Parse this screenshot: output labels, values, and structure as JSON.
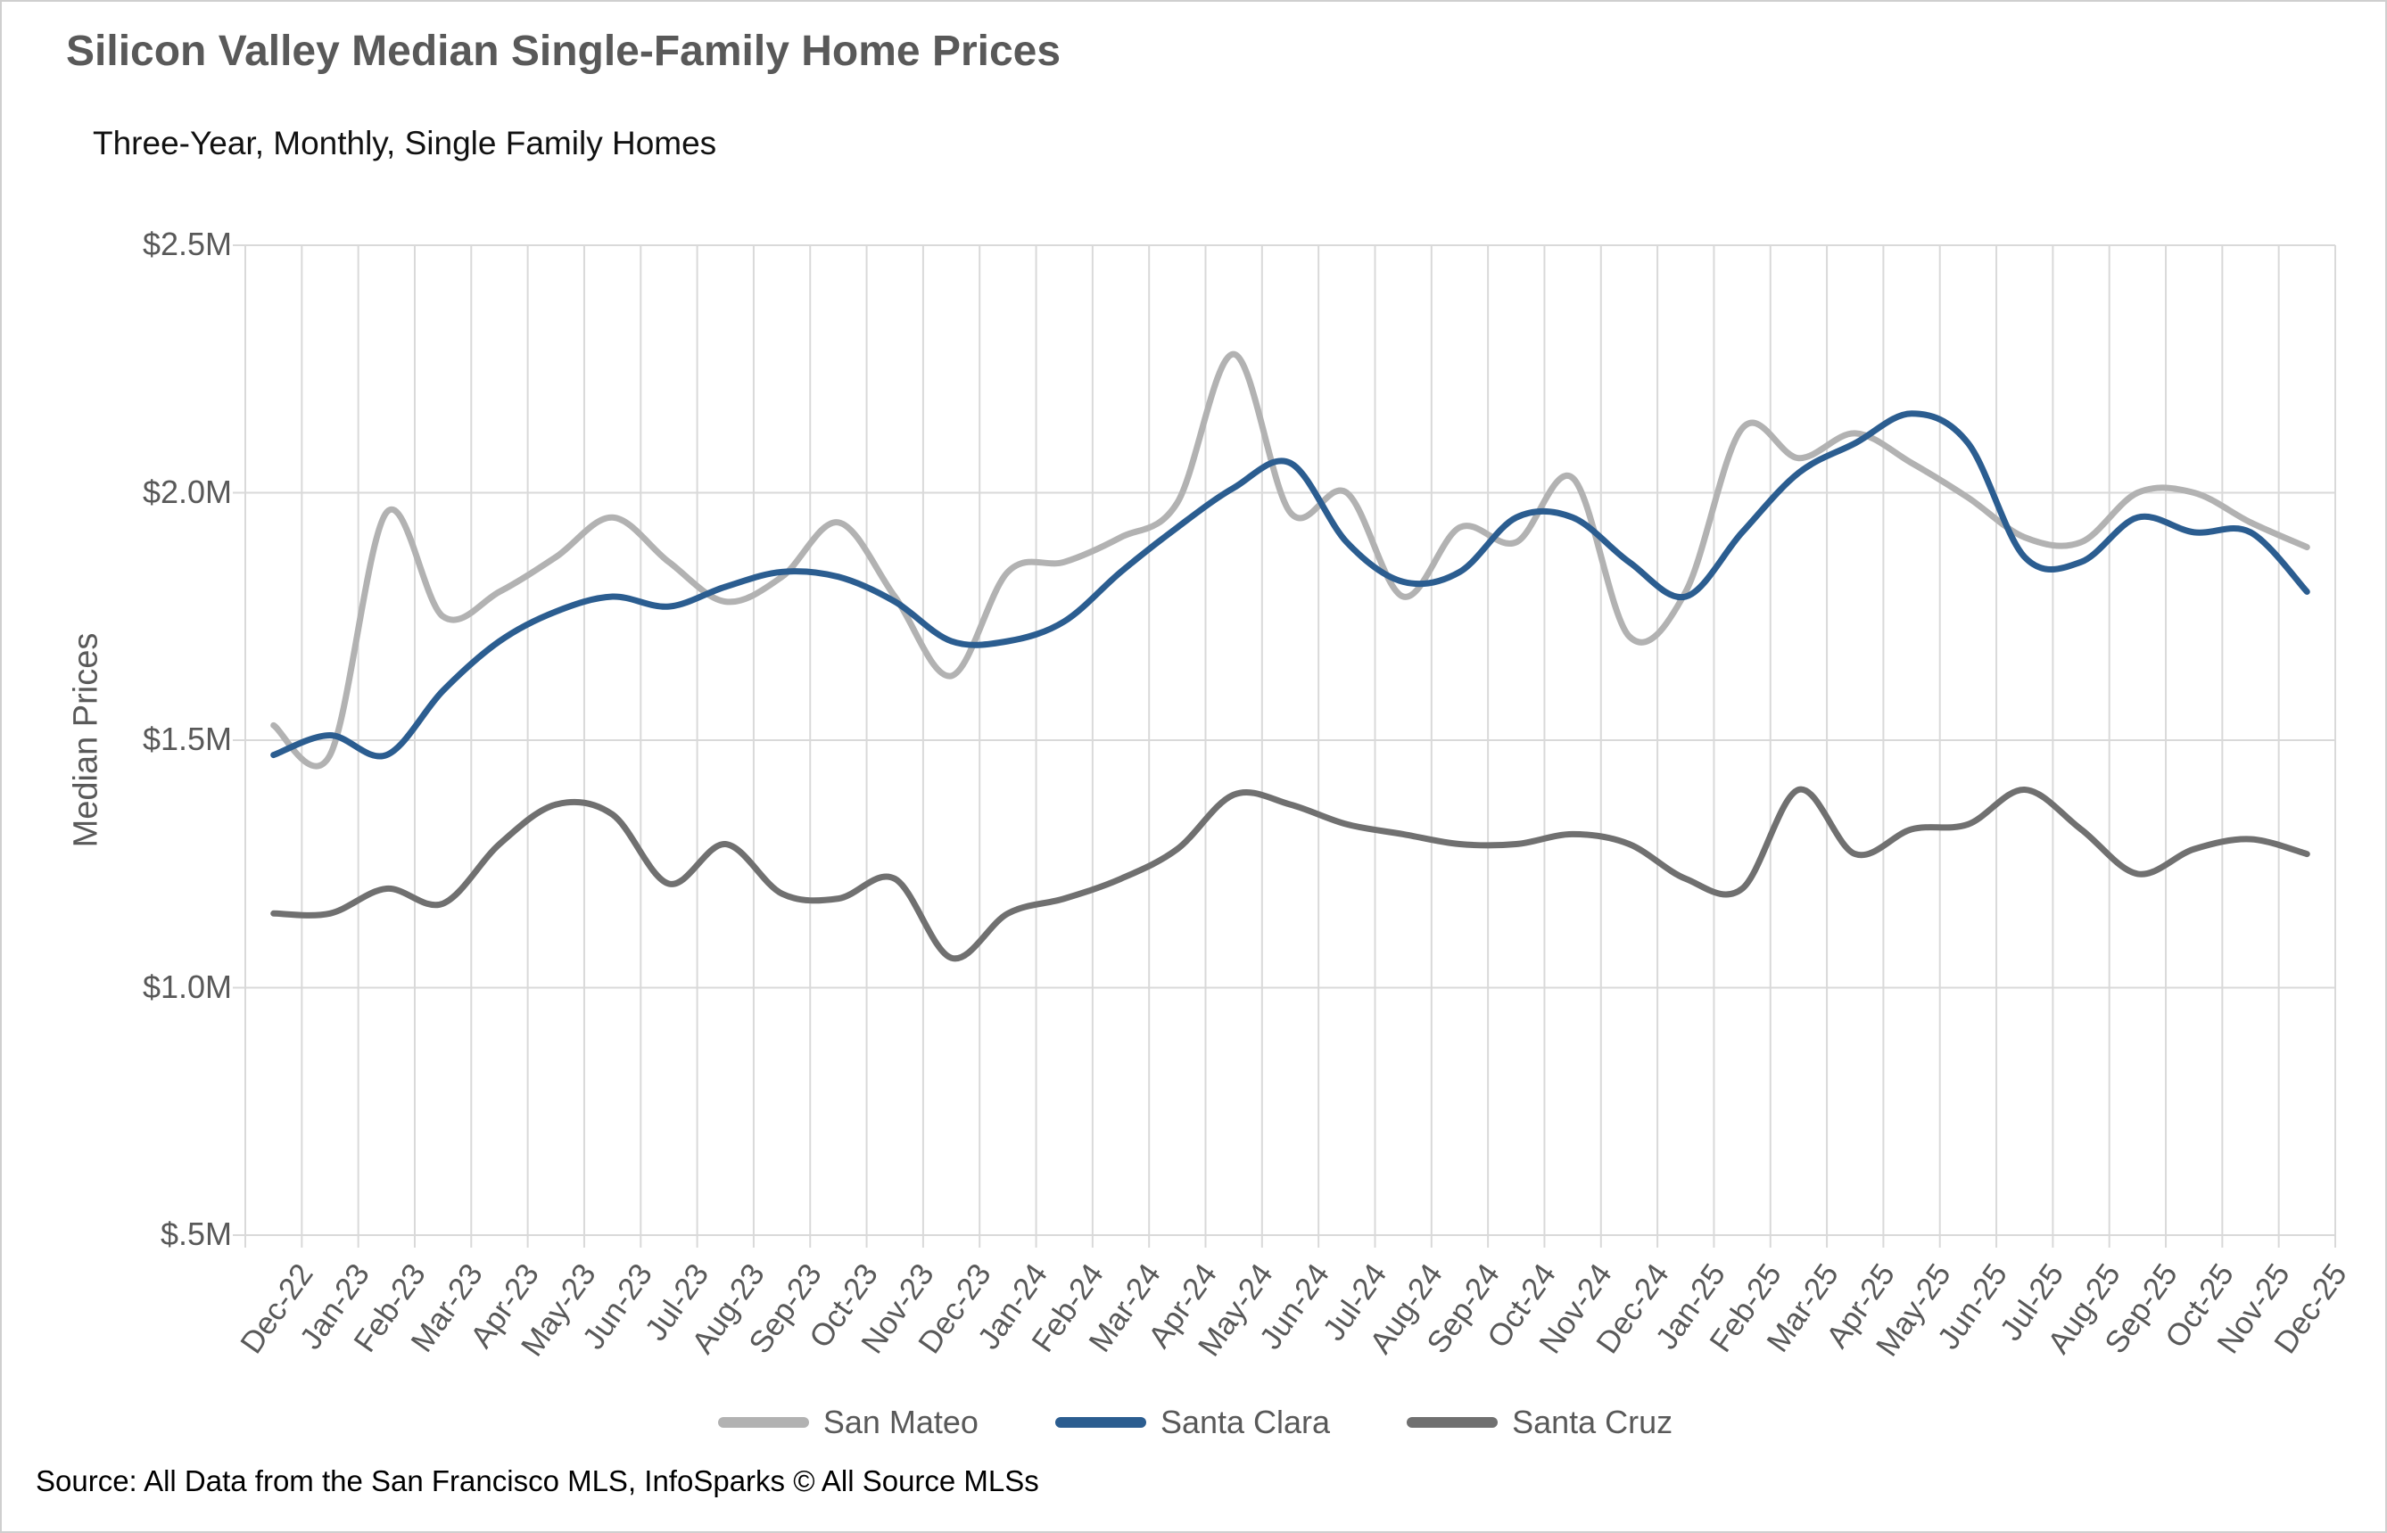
{
  "title": "Silicon Valley Median Single-Family Home Prices",
  "subtitle": "Three-Year, Monthly, Single Family Homes",
  "source": "Source: All Data from the San Francisco MLS, InfoSparks © All Source MLSs",
  "y_axis": {
    "title": "Median Prices",
    "tick_labels": [
      "$2.5M",
      "$2.0M",
      "$1.5M",
      "$1.0M",
      "$.5M"
    ],
    "tick_values": [
      2.5,
      2.0,
      1.5,
      1.0,
      0.5
    ]
  },
  "colors": {
    "san_mateo": "#b2b2b2",
    "santa_clara": "#2b5d90",
    "santa_cruz": "#707070",
    "gridline": "#d9d9d9",
    "text_gray": "#595959"
  },
  "chart_data": {
    "type": "line",
    "title": "Silicon Valley Median Single-Family Home Prices",
    "subtitle": "Three-Year, Monthly, Single Family Homes",
    "xlabel": "",
    "ylabel": "Median Prices",
    "ylim": [
      0.5,
      2.5
    ],
    "y_unit": "$M",
    "grid": true,
    "legend_position": "bottom",
    "line_style": "smooth",
    "categories": [
      "Dec-22",
      "Jan-23",
      "Feb-23",
      "Mar-23",
      "Apr-23",
      "May-23",
      "Jun-23",
      "Jul-23",
      "Aug-23",
      "Sep-23",
      "Oct-23",
      "Nov-23",
      "Dec-23",
      "Jan-24",
      "Feb-24",
      "Mar-24",
      "Apr-24",
      "May-24",
      "Jun-24",
      "Jul-24",
      "Aug-24",
      "Sep-24",
      "Oct-24",
      "Nov-24",
      "Dec-24",
      "Jan-25",
      "Feb-25",
      "Mar-25",
      "Apr-25",
      "May-25",
      "Jun-25",
      "Jul-25",
      "Aug-25",
      "Sep-25",
      "Oct-25",
      "Nov-25",
      "Dec-25"
    ],
    "series": [
      {
        "name": "San Mateo",
        "color": "#b2b2b2",
        "values": [
          1.53,
          1.47,
          1.96,
          1.75,
          1.8,
          1.87,
          1.95,
          1.86,
          1.78,
          1.83,
          1.94,
          1.79,
          1.63,
          1.84,
          1.86,
          1.91,
          1.98,
          2.28,
          1.96,
          2.0,
          1.79,
          1.93,
          1.9,
          2.03,
          1.71,
          1.8,
          2.13,
          2.07,
          2.12,
          2.06,
          1.99,
          1.91,
          1.9,
          2.0,
          2.0,
          1.94,
          1.89
        ]
      },
      {
        "name": "Santa Clara",
        "color": "#2b5d90",
        "values": [
          1.47,
          1.51,
          1.47,
          1.6,
          1.7,
          1.76,
          1.79,
          1.77,
          1.81,
          1.84,
          1.83,
          1.78,
          1.7,
          1.7,
          1.74,
          1.84,
          1.93,
          2.01,
          2.06,
          1.9,
          1.82,
          1.84,
          1.95,
          1.95,
          1.86,
          1.79,
          1.92,
          2.04,
          2.1,
          2.16,
          2.1,
          1.87,
          1.86,
          1.95,
          1.92,
          1.92,
          1.8
        ]
      },
      {
        "name": "Santa Cruz",
        "color": "#707070",
        "values": [
          1.15,
          1.15,
          1.2,
          1.17,
          1.29,
          1.37,
          1.35,
          1.21,
          1.29,
          1.19,
          1.18,
          1.22,
          1.06,
          1.15,
          1.18,
          1.22,
          1.28,
          1.39,
          1.37,
          1.33,
          1.31,
          1.29,
          1.29,
          1.31,
          1.29,
          1.22,
          1.2,
          1.4,
          1.27,
          1.32,
          1.33,
          1.4,
          1.32,
          1.23,
          1.28,
          1.3,
          1.27
        ]
      }
    ]
  }
}
